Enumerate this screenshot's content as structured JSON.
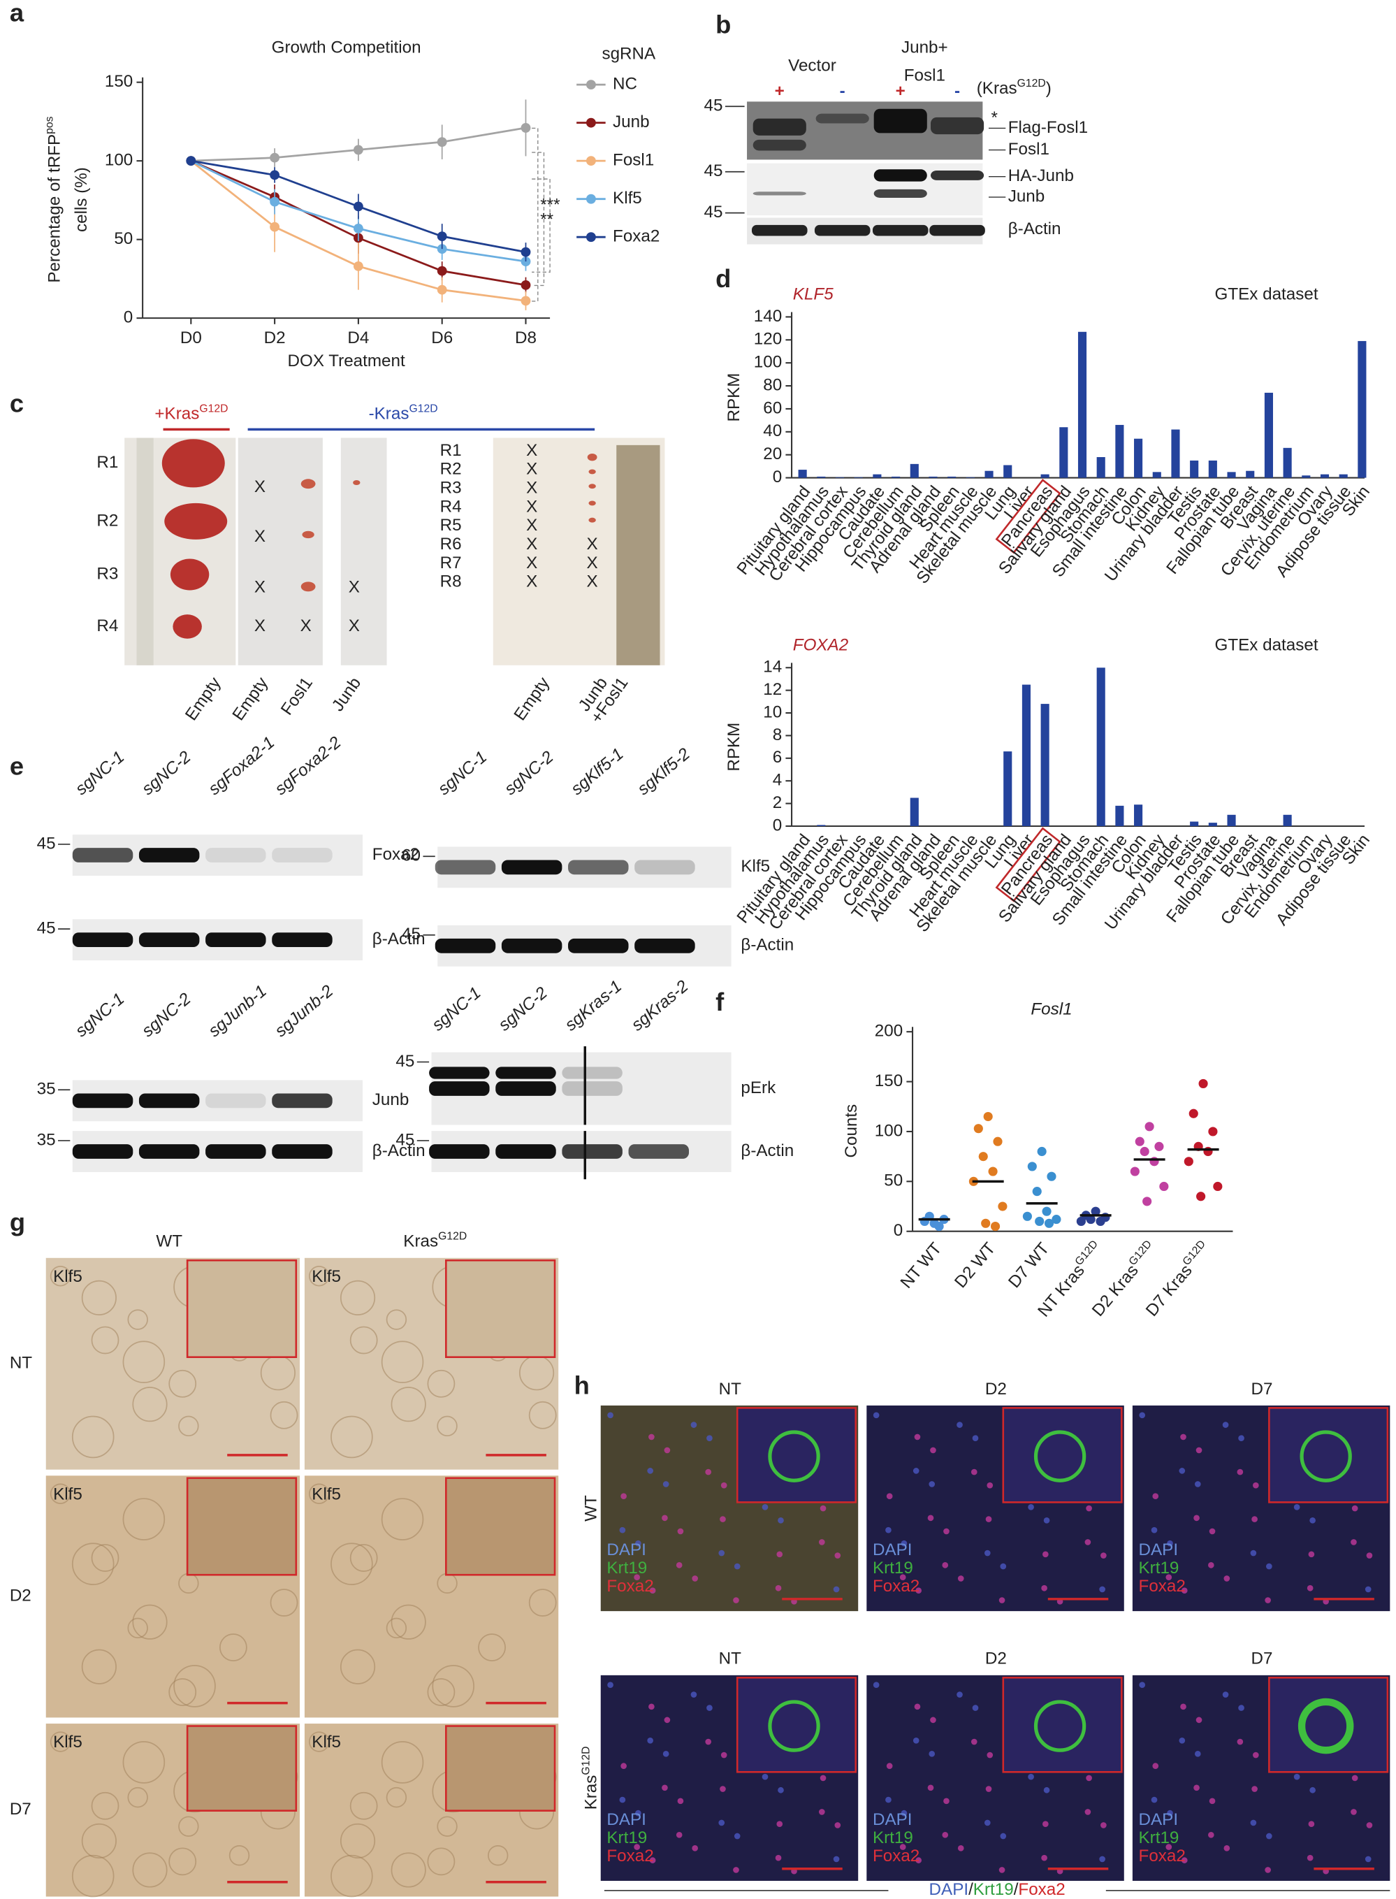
{
  "panel_labels": [
    "a",
    "b",
    "c",
    "d",
    "e",
    "f",
    "g",
    "h"
  ],
  "chart_data": [
    {
      "type": "line",
      "title": "Growth Competition",
      "x_label": "DOX Treatment",
      "y_label": "Percentage of tRFP",
      "y_label_superscript": "pos",
      "y_label_line2": "cells (%)",
      "categories": [
        "D0",
        "D2",
        "D4",
        "D6",
        "D8"
      ],
      "ylim": [
        0,
        150
      ],
      "yticks": [
        0,
        50,
        100,
        150
      ],
      "grid": false,
      "legend_title": "sgRNA",
      "legend": "right",
      "annotations": [
        "***",
        "**"
      ],
      "series": [
        {
          "name": "NC",
          "color": "#a3a3a3",
          "values": [
            100,
            102,
            107,
            112,
            121
          ],
          "errors": [
            0,
            6,
            7,
            11,
            18
          ]
        },
        {
          "name": "Junb",
          "color": "#8b1a1a",
          "values": [
            100,
            77,
            51,
            30,
            21
          ],
          "errors": [
            0,
            8,
            10,
            6,
            5
          ]
        },
        {
          "name": "Fosl1",
          "color": "#f2b27a",
          "values": [
            100,
            58,
            33,
            18,
            11
          ],
          "errors": [
            0,
            16,
            15,
            8,
            6
          ]
        },
        {
          "name": "Klf5",
          "color": "#6aaee0",
          "values": [
            100,
            74,
            57,
            44,
            36
          ],
          "errors": [
            0,
            8,
            8,
            7,
            6
          ]
        },
        {
          "name": "Foxa2",
          "color": "#1f3f8f",
          "values": [
            100,
            91,
            71,
            52,
            42
          ],
          "errors": [
            0,
            5,
            8,
            8,
            6
          ]
        }
      ]
    },
    {
      "type": "bar",
      "title": "KLF5",
      "subtitle": "GTEx dataset",
      "y_label": "RPKM",
      "color": "#24439c",
      "highlight_index": 13,
      "categories": [
        "Pituitary gland",
        "Hypothalamus",
        "Cerebral cortex",
        "Hippocampus",
        "Caudate",
        "Cerebellum",
        "Thyroid gland",
        "Adrenal gland",
        "Spleen",
        "Heart muscle",
        "Skeletal muscle",
        "Lung",
        "Liver",
        "Pancreas",
        "Salivary gland",
        "Esophagus",
        "Stomach",
        "Small intestine",
        "Colon",
        "Kidney",
        "Urinary bladder",
        "Testis",
        "Prostate",
        "Fallopian tube",
        "Breast",
        "Vagina",
        "Cervix, uterine",
        "Endometrium",
        "Ovary",
        "Adipose tissue",
        "Skin"
      ],
      "values": [
        7,
        1,
        0.5,
        0.5,
        3,
        1,
        12,
        1,
        1,
        0.5,
        6,
        11,
        0,
        3,
        44,
        127,
        18,
        46,
        34,
        5,
        42,
        15,
        15,
        5,
        6,
        74,
        26,
        2,
        3,
        3,
        119
      ],
      "ylim": [
        0,
        140
      ],
      "yticks": [
        0,
        20,
        40,
        60,
        80,
        100,
        120,
        140
      ]
    },
    {
      "type": "bar",
      "title": "FOXA2",
      "subtitle": "GTEx dataset",
      "y_label": "RPKM",
      "color": "#24439c",
      "highlight_index": 13,
      "categories": [
        "Pituitary gland",
        "Hypothalamus",
        "Cerebral cortex",
        "Hippocampus",
        "Caudate",
        "Cerebellum",
        "Thyroid gland",
        "Adrenal gland",
        "Spleen",
        "Heart muscle",
        "Skeletal muscle",
        "Lung",
        "Liver",
        "Pancreas",
        "Salivary gland",
        "Esophagus",
        "Stomach",
        "Small intestine",
        "Colon",
        "Kidney",
        "Urinary bladder",
        "Testis",
        "Prostate",
        "Fallopian tube",
        "Breast",
        "Vagina",
        "Cervix, uterine",
        "Endometrium",
        "Ovary",
        "Adipose tissue",
        "Skin"
      ],
      "values": [
        0,
        0.1,
        0,
        0,
        0,
        0,
        2.5,
        0,
        0,
        0,
        0,
        6.6,
        12.5,
        10.8,
        0,
        0,
        14,
        1.8,
        1.9,
        0,
        0,
        0.4,
        0.3,
        1.0,
        0,
        0,
        1.0,
        0,
        0,
        0,
        0
      ],
      "ylim": [
        0,
        14
      ],
      "yticks": [
        0,
        2,
        4,
        6,
        8,
        10,
        12,
        14
      ]
    },
    {
      "type": "strip",
      "title": "Fosl1",
      "y_label": "Counts",
      "categories": [
        "NT WT",
        "D2 WT",
        "D7 WT",
        "NT Kras",
        "D2 Kras",
        "D7 Kras"
      ],
      "category_superscripts": [
        null,
        null,
        null,
        "G12D",
        "G12D",
        "G12D"
      ],
      "colors": [
        "#4a90d9",
        "#e07b20",
        "#3a8fd0",
        "#2b3f8f",
        "#c040a0",
        "#c0182a"
      ],
      "points": [
        [
          8,
          10,
          12,
          15,
          5
        ],
        [
          115,
          103,
          90,
          75,
          60,
          50,
          25,
          8,
          5
        ],
        [
          80,
          65,
          55,
          40,
          20,
          15,
          12,
          10,
          8
        ],
        [
          20,
          16,
          14,
          12,
          10,
          10
        ],
        [
          105,
          90,
          85,
          80,
          70,
          60,
          45,
          30
        ],
        [
          148,
          118,
          100,
          85,
          80,
          70,
          45,
          35
        ]
      ],
      "means": [
        12,
        50,
        28,
        16,
        72,
        82
      ],
      "ylim": [
        0,
        200
      ],
      "yticks": [
        0,
        50,
        100,
        150,
        200
      ]
    }
  ],
  "blot_b": {
    "groups": [
      "Vector",
      "Junb+",
      "Fosl1"
    ],
    "lanes": [
      "+",
      "-",
      "+",
      "-"
    ],
    "kras": "(Kras",
    "kras_superscript": "G12D",
    "kras_close": ")",
    "markers": [
      45,
      45,
      45
    ],
    "bands": [
      "Flag-Fosl1",
      "Fosl1",
      "HA-Junb",
      "Junb",
      "β-Actin"
    ],
    "star": "*"
  },
  "tumors_c": {
    "pos_header": "+Kras",
    "neg_header": "-Kras",
    "header_superscript": "G12D",
    "left_rows": [
      "R1",
      "R2",
      "R3",
      "R4"
    ],
    "right_rows": [
      "R1",
      "R2",
      "R3",
      "R4",
      "R5",
      "R6",
      "R7",
      "R8"
    ],
    "absent": "X",
    "columns": [
      "Empty",
      "Empty",
      "Fosl1",
      "Junb",
      "Empty",
      "Junb",
      "+Fosl1"
    ]
  },
  "blots_e": [
    {
      "lanes": [
        "sgNC-1",
        "sgNC-2",
        "sgFoxa2-1",
        "sgFoxa2-2"
      ],
      "markers": [
        45,
        45
      ],
      "bands": [
        "Foxa2",
        "β-Actin"
      ]
    },
    {
      "lanes": [
        "sgNC-1",
        "sgNC-2",
        "sgKlf5-1",
        "sgKlf5-2"
      ],
      "markers": [
        60,
        45
      ],
      "bands": [
        "Klf5",
        "β-Actin"
      ]
    },
    {
      "lanes": [
        "sgNC-1",
        "sgNC-2",
        "sgJunb-1",
        "sgJunb-2"
      ],
      "markers": [
        35,
        35
      ],
      "bands": [
        "Junb",
        "β-Actin"
      ]
    },
    {
      "lanes": [
        "sgNC-1",
        "sgNC-2",
        "sgKras-1",
        "sgKras-2"
      ],
      "markers": [
        45,
        45
      ],
      "bands": [
        "pErk",
        "β-Actin"
      ]
    }
  ],
  "ihc_g": {
    "columns": [
      "WT",
      "Kras"
    ],
    "column_superscript": "G12D",
    "rows": [
      "NT",
      "D2",
      "D7"
    ],
    "stain": "Klf5"
  },
  "if_h": {
    "columns": [
      "NT",
      "D2",
      "D7"
    ],
    "rows": [
      "WT",
      "Kras"
    ],
    "row_superscript": "G12D",
    "channels": [
      "DAPI",
      "Krt19",
      "Foxa2"
    ],
    "slash": "/"
  }
}
